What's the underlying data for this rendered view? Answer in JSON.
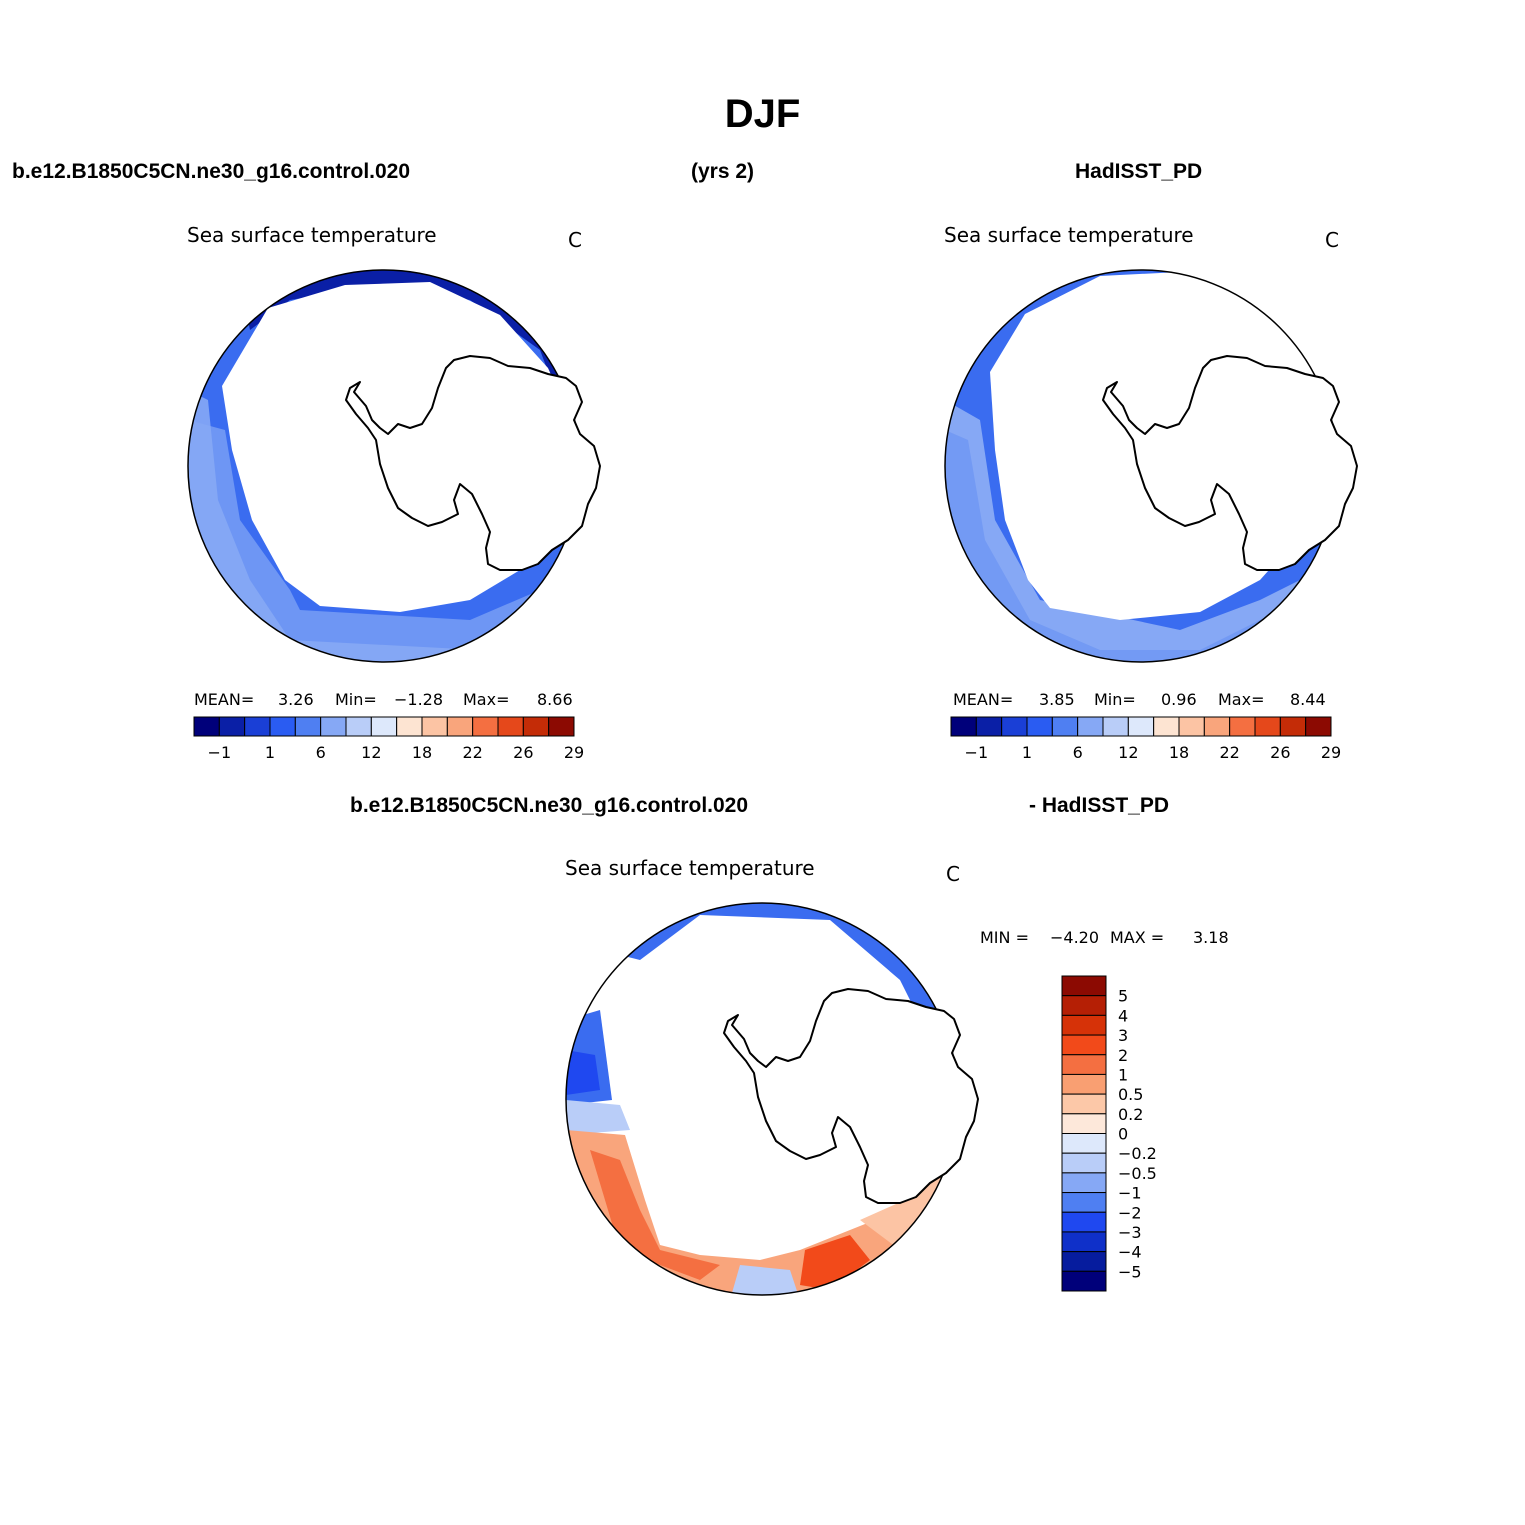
{
  "title": "DJF",
  "header": {
    "case_name": "b.e12.B1850C5CN.ne30_g16.control.020",
    "years": "(yrs 2)",
    "obs_name": "HadISST_PD"
  },
  "diff_header": {
    "case_name": "b.e12.B1850C5CN.ne30_g16.control.020",
    "obs_name": "- HadISST_PD"
  },
  "panels": [
    {
      "id": "model",
      "field_title": "Sea surface temperature",
      "units": "C",
      "stats": {
        "mean_label": "MEAN=",
        "mean": "3.26",
        "min_label": "Min=",
        "min": "−1.28",
        "max_label": "Max=",
        "max": "8.66"
      }
    },
    {
      "id": "obs",
      "field_title": "Sea surface temperature",
      "units": "C",
      "stats": {
        "mean_label": "MEAN=",
        "mean": "3.85",
        "min_label": "Min=",
        "min": "0.96",
        "max_label": "Max=",
        "max": "8.44"
      }
    },
    {
      "id": "difference",
      "field_title": "Sea surface temperature",
      "units": "C",
      "stats": {
        "min_label": "MIN =",
        "min": "−4.20",
        "max_label": "MAX =",
        "max": "3.18"
      }
    }
  ],
  "colorbar_abs": {
    "colors": [
      "#00007a",
      "#0a1fa6",
      "#1a3fd6",
      "#2a5cf2",
      "#4f7ff2",
      "#86a8f5",
      "#b9cdf8",
      "#dde8fb",
      "#fde4d2",
      "#fcc4a4",
      "#f9a57c",
      "#f46f41",
      "#e5481b",
      "#c42c07",
      "#8c0a02"
    ],
    "tick_labels": [
      "−1",
      "1",
      "6",
      "12",
      "18",
      "22",
      "26",
      "29"
    ]
  },
  "colorbar_diff": {
    "colors": [
      "#8c0a02",
      "#b51f05",
      "#d63208",
      "#f24a1a",
      "#f46f41",
      "#f99f72",
      "#fcc8a8",
      "#fde8da",
      "#dde8fb",
      "#b9cdf8",
      "#86a8f5",
      "#4f7ff2",
      "#1f48f0",
      "#0f30c9",
      "#061c9e",
      "#00007a"
    ],
    "tick_labels": [
      "5",
      "4",
      "3",
      "2",
      "1",
      "0.5",
      "0.2",
      "0",
      "−0.2",
      "−0.5",
      "−1",
      "−2",
      "−3",
      "−4",
      "−5"
    ]
  },
  "colors": {
    "land": "#ffffff",
    "outline": "#000000"
  }
}
